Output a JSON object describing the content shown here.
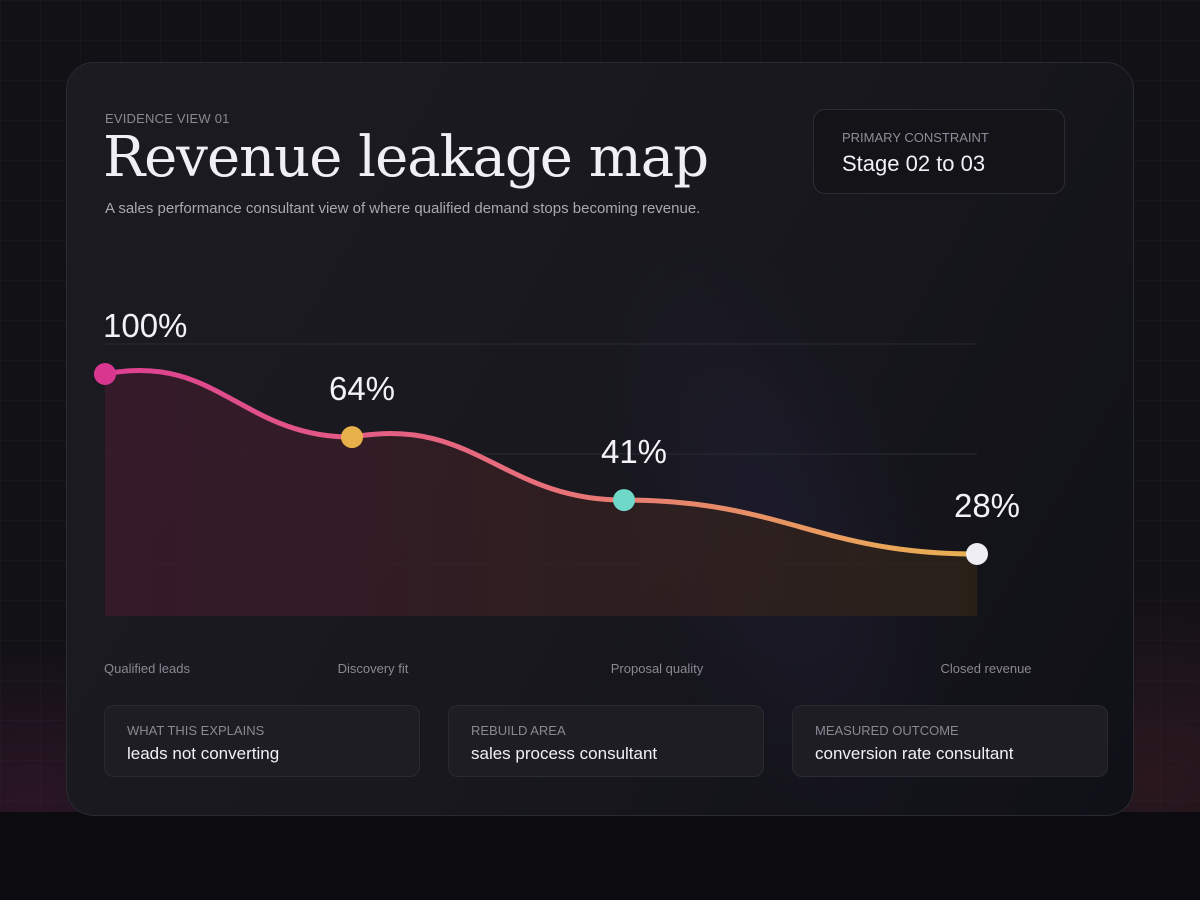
{
  "header": {
    "eyebrow": "EVIDENCE VIEW 01",
    "title": "Revenue leakage map",
    "subtitle": "A sales performance consultant view of where qualified demand stops becoming revenue."
  },
  "constraint": {
    "label": "PRIMARY CONSTRAINT",
    "value": "Stage 02 to 03"
  },
  "chart_data": {
    "type": "line",
    "title": "Revenue leakage map",
    "categories": [
      "Qualified leads",
      "Discovery fit",
      "Proposal quality",
      "Closed revenue"
    ],
    "values": [
      100,
      64,
      41,
      28
    ],
    "labels": [
      "100%",
      "64%",
      "41%",
      "28%"
    ],
    "point_colors": [
      "#d9378f",
      "#e8b04a",
      "#6fd8c9",
      "#f0eef5"
    ],
    "line_gradient": [
      "#dd3f92",
      "#e8707a",
      "#e9b251"
    ],
    "grid": true
  },
  "cards": [
    {
      "label": "WHAT THIS EXPLAINS",
      "value": "leads not converting"
    },
    {
      "label": "REBUILD AREA",
      "value": "sales process consultant"
    },
    {
      "label": "MEASURED OUTCOME",
      "value": "conversion rate consultant"
    }
  ]
}
